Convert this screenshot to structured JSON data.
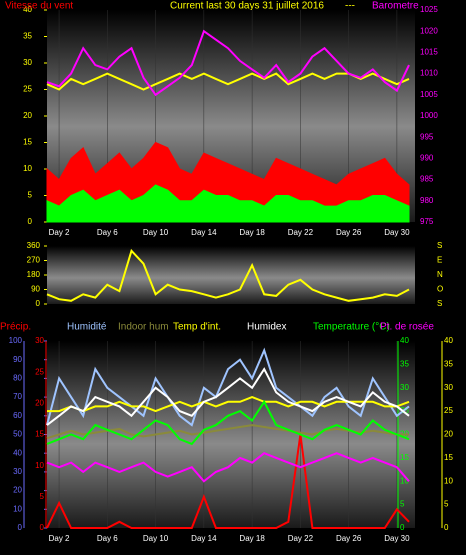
{
  "chart_data": [
    {
      "type": "line",
      "title": "Current last 30 days 31 juillet 2016",
      "subtitle": "---",
      "x": [
        1,
        2,
        3,
        4,
        5,
        6,
        7,
        8,
        9,
        10,
        11,
        12,
        13,
        14,
        15,
        16,
        17,
        18,
        19,
        20,
        21,
        22,
        23,
        24,
        25,
        26,
        27,
        28,
        29,
        30,
        31
      ],
      "xlim": [
        1,
        31.5
      ],
      "xticks": [
        {
          "value": 2,
          "label": "Day 2"
        },
        {
          "value": 6,
          "label": "Day 6"
        },
        {
          "value": 10,
          "label": "Day 10"
        },
        {
          "value": 14,
          "label": "Day 14"
        },
        {
          "value": 18,
          "label": "Day 18"
        },
        {
          "value": 22,
          "label": "Day 22"
        },
        {
          "value": 26,
          "label": "Day 26"
        },
        {
          "value": 30,
          "label": "Day 30"
        }
      ],
      "axes": [
        {
          "color": "#ffff00",
          "lim": [
            0,
            40
          ],
          "ticks": [
            0,
            5,
            10,
            15,
            20,
            25,
            30,
            35,
            40
          ]
        },
        {
          "color": "#ff00ff",
          "lim": [
            975,
            1025
          ],
          "ticks": [
            975,
            980,
            985,
            990,
            995,
            1000,
            1005,
            1010,
            1015,
            1020,
            1025
          ]
        }
      ],
      "series": [
        {
          "name": "Vitesse du vent",
          "color": "#ff0000",
          "axis": 0,
          "fill": true,
          "values": [
            10,
            8,
            12,
            14,
            9,
            11,
            13,
            10,
            12,
            15,
            14,
            10,
            9,
            13,
            12,
            11,
            10,
            9,
            8,
            12,
            11,
            10,
            9,
            8,
            7,
            9,
            10,
            11,
            12,
            9,
            7
          ]
        },
        {
          "color": "#00ff00",
          "axis": 0,
          "fill": true,
          "values": [
            4,
            3,
            5,
            6,
            4,
            5,
            6,
            4,
            5,
            7,
            6,
            4,
            4,
            6,
            5,
            5,
            4,
            4,
            3,
            5,
            5,
            4,
            4,
            3,
            3,
            4,
            4,
            5,
            5,
            4,
            3
          ]
        },
        {
          "color": "#ffff00",
          "axis": 0,
          "values": [
            26,
            25,
            27,
            26,
            27,
            28,
            27,
            26,
            25,
            26,
            27,
            28,
            27,
            28,
            27,
            26,
            27,
            28,
            27,
            28,
            26,
            27,
            28,
            27,
            28,
            28,
            27,
            28,
            27,
            26,
            27
          ]
        },
        {
          "name": "Barometre",
          "color": "#ff00ff",
          "axis": 1,
          "values": [
            1008,
            1007,
            1010,
            1016,
            1012,
            1011,
            1014,
            1016,
            1009,
            1005,
            1007,
            1009,
            1012,
            1020,
            1018,
            1016,
            1013,
            1011,
            1009,
            1012,
            1008,
            1010,
            1014,
            1016,
            1013,
            1010,
            1009,
            1011,
            1008,
            1006,
            1012
          ]
        }
      ]
    },
    {
      "type": "line",
      "x": [
        1,
        2,
        3,
        4,
        5,
        6,
        7,
        8,
        9,
        10,
        11,
        12,
        13,
        14,
        15,
        16,
        17,
        18,
        19,
        20,
        21,
        22,
        23,
        24,
        25,
        26,
        27,
        28,
        29,
        30,
        31
      ],
      "xlim": [
        1,
        31.5
      ],
      "axes": [
        {
          "color": "#ffff00",
          "lim": [
            0,
            360
          ],
          "ticks": [
            0,
            90,
            180,
            270,
            360
          ]
        },
        {
          "color": "#ffff00",
          "lim": [
            0,
            360
          ],
          "ticks": [
            {
              "value": 360,
              "label": "S"
            },
            {
              "value": 270,
              "label": "E"
            },
            {
              "value": 180,
              "label": "N"
            },
            {
              "value": 90,
              "label": "O"
            },
            {
              "value": 0,
              "label": "S"
            }
          ]
        }
      ],
      "series": [
        {
          "color": "#ffff00",
          "axis": 0,
          "values": [
            60,
            30,
            20,
            60,
            40,
            120,
            80,
            330,
            250,
            60,
            120,
            90,
            80,
            60,
            40,
            60,
            90,
            240,
            60,
            50,
            120,
            150,
            90,
            60,
            40,
            20,
            30,
            40,
            60,
            50,
            90
          ]
        }
      ]
    },
    {
      "type": "line",
      "x": [
        1,
        2,
        3,
        4,
        5,
        6,
        7,
        8,
        9,
        10,
        11,
        12,
        13,
        14,
        15,
        16,
        17,
        18,
        19,
        20,
        21,
        22,
        23,
        24,
        25,
        26,
        27,
        28,
        29,
        30,
        31
      ],
      "xlim": [
        1,
        31.5
      ],
      "xticks": [
        {
          "value": 2,
          "label": "Day 2"
        },
        {
          "value": 6,
          "label": "Day 6"
        },
        {
          "value": 10,
          "label": "Day 10"
        },
        {
          "value": 14,
          "label": "Day 14"
        },
        {
          "value": 18,
          "label": "Day 18"
        },
        {
          "value": 22,
          "label": "Day 22"
        },
        {
          "value": 26,
          "label": "Day 26"
        },
        {
          "value": 30,
          "label": "Day 30"
        }
      ],
      "axes": [
        {
          "color": "#6b6bff",
          "lim": [
            0,
            100
          ],
          "ticks": [
            0,
            10,
            20,
            30,
            40,
            50,
            60,
            70,
            80,
            90,
            100
          ]
        },
        {
          "color": "#ff0000",
          "lim": [
            0,
            30
          ],
          "ticks": [
            0,
            5,
            10,
            15,
            20,
            25,
            30
          ]
        },
        {
          "color": "#00ff00",
          "lim": [
            0,
            40
          ],
          "ticks": [
            0,
            5,
            10,
            15,
            20,
            25,
            30,
            35,
            40
          ]
        },
        {
          "color": "#ffff00",
          "lim": [
            0,
            40
          ],
          "ticks": [
            0,
            5,
            10,
            15,
            20,
            25,
            30,
            35,
            40
          ]
        }
      ],
      "series": [
        {
          "name": "Précip.",
          "color": "#ff0000",
          "axis": 1,
          "values": [
            0,
            4,
            0,
            0,
            0,
            0,
            1,
            0,
            0,
            0,
            0,
            0,
            0,
            5,
            0,
            0,
            0,
            0,
            0,
            0,
            1,
            15,
            0,
            0,
            0,
            0,
            0,
            0,
            0,
            3,
            1
          ]
        },
        {
          "name": "Humidité",
          "color": "#9fc4ff",
          "axis": 0,
          "values": [
            55,
            80,
            70,
            60,
            85,
            75,
            70,
            65,
            60,
            80,
            70,
            60,
            55,
            75,
            70,
            85,
            90,
            80,
            95,
            75,
            70,
            65,
            60,
            70,
            75,
            65,
            60,
            80,
            70,
            60,
            65
          ]
        },
        {
          "name": "Indoor hum",
          "color": "#8a8a3a",
          "axis": 0,
          "values": [
            48,
            50,
            52,
            50,
            51,
            52,
            53,
            50,
            49,
            50,
            51,
            52,
            50,
            51,
            52,
            53,
            54,
            55,
            54,
            53,
            52,
            51,
            50,
            52,
            53,
            52,
            51,
            52,
            51,
            50,
            50
          ]
        },
        {
          "name": "Temp d'int.",
          "color": "#ffff00",
          "axis": 3,
          "values": [
            25,
            25,
            26,
            25,
            26,
            26,
            27,
            26,
            26,
            25,
            26,
            27,
            26,
            27,
            26,
            27,
            27,
            28,
            27,
            27,
            26,
            27,
            27,
            26,
            27,
            27,
            27,
            27,
            26,
            26,
            27
          ]
        },
        {
          "name": "Humidex",
          "color": "#ffffff",
          "axis": 2,
          "values": [
            22,
            24,
            26,
            25,
            28,
            27,
            26,
            24,
            27,
            30,
            28,
            25,
            24,
            27,
            28,
            30,
            32,
            30,
            34,
            29,
            27,
            26,
            25,
            27,
            28,
            27,
            26,
            29,
            27,
            26,
            24
          ]
        },
        {
          "name": "Temperature (°C)",
          "color": "#00ff00",
          "axis": 2,
          "values": [
            18,
            19,
            20,
            19,
            22,
            21,
            20,
            19,
            21,
            23,
            22,
            19,
            18,
            21,
            22,
            24,
            25,
            23,
            27,
            22,
            21,
            20,
            19,
            21,
            22,
            21,
            20,
            23,
            21,
            20,
            19
          ]
        },
        {
          "name": "Pt. de rosée",
          "color": "#ff00ff",
          "axis": 2,
          "values": [
            14,
            13,
            14,
            12,
            14,
            13,
            12,
            13,
            14,
            12,
            11,
            12,
            13,
            10,
            12,
            13,
            15,
            14,
            16,
            15,
            14,
            13,
            14,
            15,
            16,
            15,
            14,
            15,
            14,
            13,
            10
          ]
        }
      ]
    }
  ]
}
